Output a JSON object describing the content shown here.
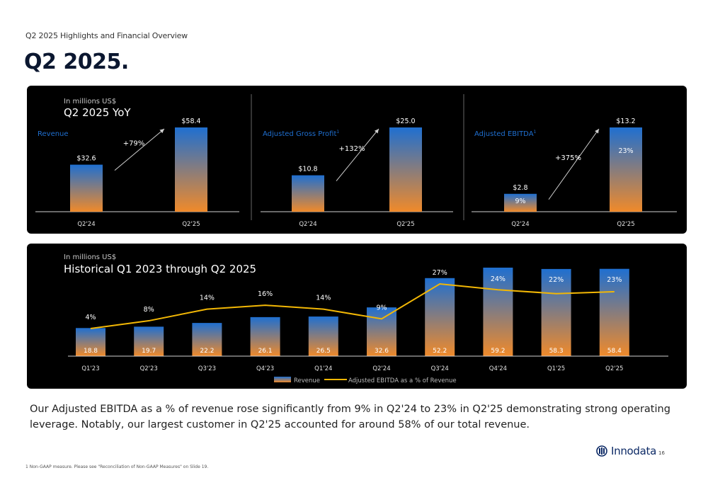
{
  "header": {
    "supertitle": "Q2 2025 Highlights and Financial Overview",
    "title": "Q2 2025."
  },
  "yoy": {
    "unit_label": "In millions US$",
    "title": "Q2 2025 YoY",
    "colors": {
      "bar_top": "#1f6fd0",
      "bar_bottom": "#f08a2a",
      "accent_label": "#1f6fd0",
      "panel_bg": "#000000"
    }
  },
  "chart_data": [
    {
      "type": "bar",
      "title": "Revenue",
      "categories": [
        "Q2'24",
        "Q2'25"
      ],
      "values": [
        32.6,
        58.4
      ],
      "value_labels": [
        "$32.6",
        "$58.4"
      ],
      "growth_label": "+79%"
    },
    {
      "type": "bar",
      "title": "Adjusted Gross Profit",
      "title_sup": "1",
      "categories": [
        "Q2'24",
        "Q2'25"
      ],
      "values": [
        10.8,
        25.0
      ],
      "value_labels": [
        "$10.8",
        "$25.0"
      ],
      "growth_label": "+132%"
    },
    {
      "type": "bar",
      "title": "Adjusted EBITDA",
      "title_sup": "1",
      "categories": [
        "Q2'24",
        "Q2'25"
      ],
      "values": [
        2.8,
        13.2
      ],
      "value_labels": [
        "$2.8",
        "$13.2"
      ],
      "inner_labels": [
        "9%",
        "23%"
      ],
      "growth_label": "+375%"
    },
    {
      "type": "bar",
      "unit_label": "In millions US$",
      "title": "Historical Q1 2023 through Q2 2025",
      "categories": [
        "Q1'23",
        "Q2'23",
        "Q3'23",
        "Q4'23",
        "Q1'24",
        "Q2'24",
        "Q3'24",
        "Q4'24",
        "Q1'25",
        "Q2'25"
      ],
      "series": [
        {
          "name": "Revenue",
          "type": "bar",
          "values": [
            18.8,
            19.7,
            22.2,
            26.1,
            26.5,
            32.6,
            52.2,
            59.2,
            58.3,
            58.4
          ]
        },
        {
          "name": "Adjusted EBITDA as a % of Revenue",
          "type": "line",
          "values": [
            4,
            8,
            14,
            16,
            14,
            9,
            27,
            24,
            22,
            23
          ],
          "labels": [
            "4%",
            "8%",
            "14%",
            "16%",
            "14%",
            "9%",
            "27%",
            "24%",
            "22%",
            "23%"
          ],
          "color": "#f2b705"
        }
      ],
      "legend": "bottom-center"
    }
  ],
  "caption": "Our Adjusted EBITDA as a % of revenue rose significantly from 9% in Q2'24 to 23% in Q2'25 demonstrating strong operating leverage. Notably, our largest customer in Q2'25 accounted for around 58% of our total revenue.",
  "footnote": "1 Non-GAAP measure. Please see \"Reconciliation of Non-GAAP Measures\" on Slide 19.",
  "logo": {
    "text": "Innodata",
    "icon": "innodata-logo-icon"
  },
  "page_number": "16"
}
